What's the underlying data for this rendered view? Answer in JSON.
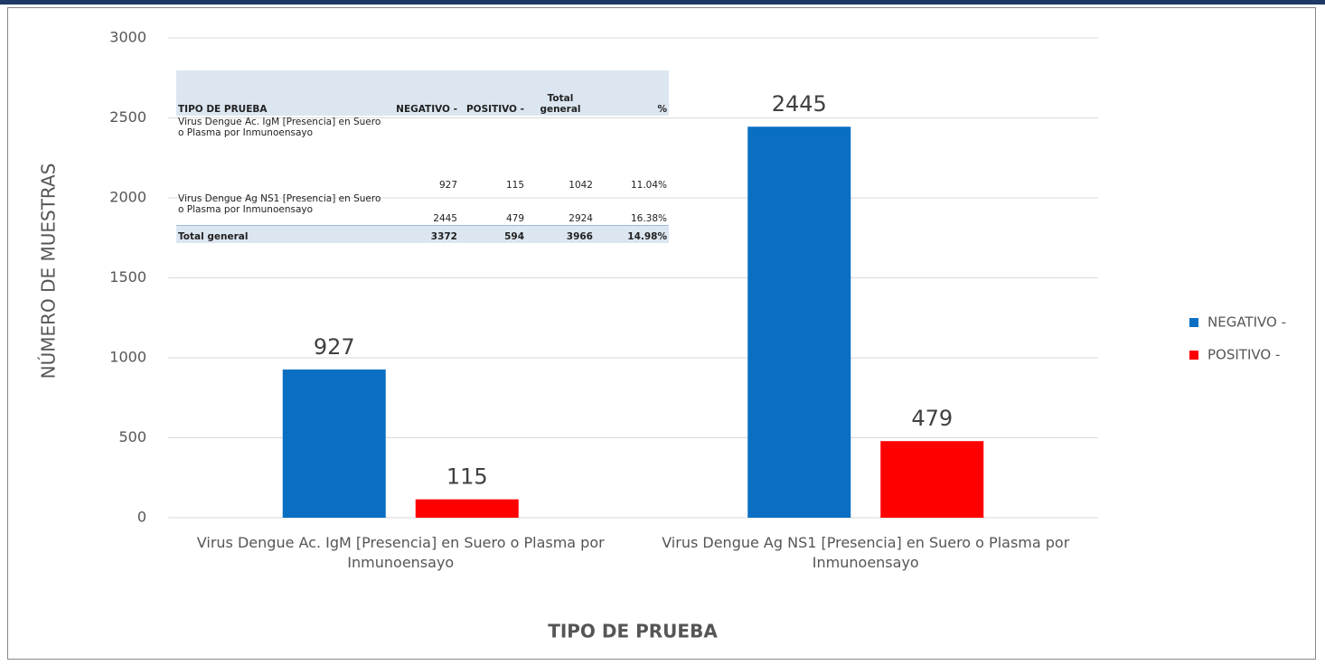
{
  "chart_data": {
    "type": "bar",
    "x_label": "TIPO DE PRUEBA",
    "y_label": "NÚMERO DE MUESTRAS",
    "categories": [
      "Virus Dengue Ac. IgM [Presencia] en Suero o Plasma por Inmunoensayo",
      "Virus Dengue Ag NS1 [Presencia] en Suero o Plasma por Inmunoensayo"
    ],
    "series": [
      {
        "name": "NEGATIVO -",
        "color": "#0a6fc2",
        "values": [
          927,
          2445
        ]
      },
      {
        "name": "POSITIVO -",
        "color": "#ff0000",
        "values": [
          115,
          479
        ]
      }
    ],
    "ylim": [
      0,
      3000
    ],
    "yticks": [
      0,
      500,
      1000,
      1500,
      2000,
      2500,
      3000
    ],
    "grid": true,
    "legend": "right"
  },
  "table": {
    "header": [
      "TIPO DE PRUEBA",
      "NEGATIVO -",
      "POSITIVO -",
      "Total general",
      "%"
    ],
    "rows": [
      [
        "Virus Dengue Ac. IgM [Presencia] en Suero o Plasma por Inmunoensayo",
        927,
        115,
        1042,
        "11.04%"
      ],
      [
        "Virus Dengue Ag NS1 [Presencia] en Suero o Plasma por Inmunoensayo",
        2445,
        479,
        2924,
        "16.38%"
      ],
      [
        "Total general",
        3372,
        594,
        3966,
        "14.98%"
      ]
    ]
  }
}
